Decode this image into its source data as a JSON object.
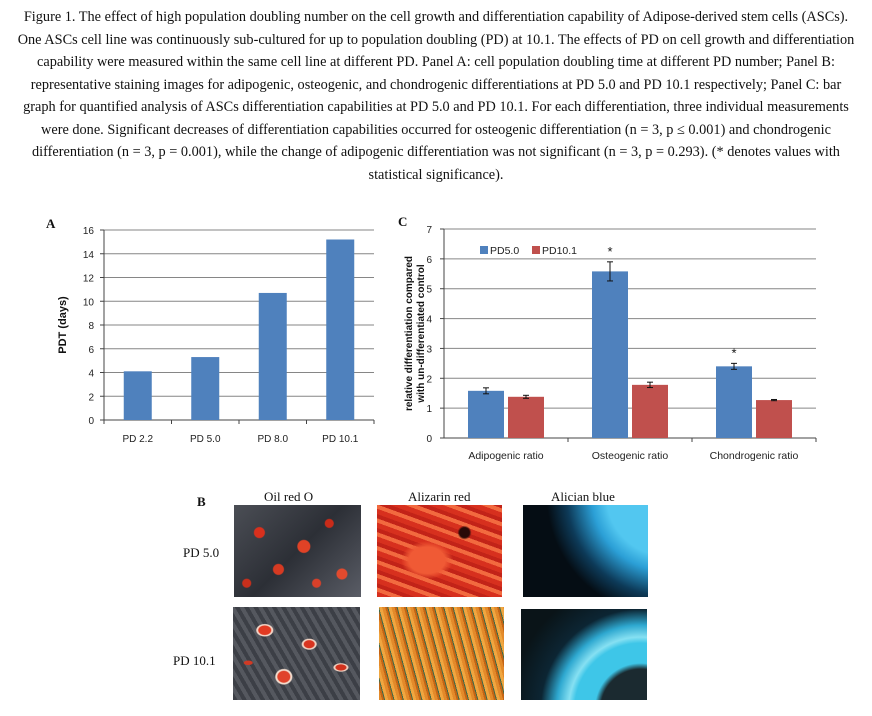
{
  "caption": "Figure 1. The effect of high population doubling number on the cell growth and differentiation capability of Adipose-derived stem cells (ASCs). One ASCs cell line was continuously sub-cultured for up to population doubling (PD) at 10.1. The effects of PD on cell growth and differentiation capability were measured within the same cell line at different PD. Panel A: cell population doubling time at different PD number; Panel B: representative staining images for adipogenic, osteogenic, and chondrogenic differentiations at PD 5.0 and PD 10.1 respectively; Panel C: bar graph for quantified analysis of ASCs differentiation capabilities at PD 5.0 and PD 10.1. For each differentiation, three individual measurements were done. Significant decreases of differentiation capabilities occurred for osteogenic differentiation (n = 3, p ≤ 0.001) and chondrogenic differentiation (n = 3, p = 0.001), while the change of adipogenic differentiation was not significant (n = 3, p = 0.293). (* denotes values with statistical significance).",
  "panels": {
    "a": "A",
    "b": "B",
    "c": "C"
  },
  "panel_b": {
    "columns": [
      "Oil red O",
      "Alizarin red",
      "Alician blue"
    ],
    "rows": [
      "PD 5.0",
      "PD 10.1"
    ]
  },
  "colors": {
    "blue": "#4f81bd",
    "red": "#c0504d",
    "grid": "#868686"
  },
  "chart_data": [
    {
      "type": "bar",
      "panel": "A",
      "categories": [
        "PD 2.2",
        "PD 5.0",
        "PD 8.0",
        "PD 10.1"
      ],
      "values": [
        4.1,
        5.3,
        10.7,
        15.2
      ],
      "ylabel": "PDT (days)",
      "ylim": [
        0,
        16
      ],
      "yticks": [
        0,
        2,
        4,
        6,
        8,
        10,
        12,
        14,
        16
      ],
      "grid": true
    },
    {
      "type": "bar",
      "panel": "C",
      "categories": [
        "Adipogenic ratio",
        "Osteogenic ratio",
        "Chondrogenic ratio"
      ],
      "series": [
        {
          "name": "PD5.0",
          "values": [
            1.58,
            5.58,
            2.4
          ],
          "errors": [
            0.1,
            0.32,
            0.1
          ]
        },
        {
          "name": "PD10.1",
          "values": [
            1.38,
            1.78,
            1.27
          ],
          "errors": [
            0.05,
            0.09,
            0.02
          ]
        }
      ],
      "significance": [
        "",
        "*",
        "*"
      ],
      "ylabel": "relative differentiation compared with un-differentiated control",
      "ylim": [
        0,
        7
      ],
      "yticks": [
        0,
        1,
        2,
        3,
        4,
        5,
        6,
        7
      ],
      "legend": "top-left",
      "grid": true
    }
  ]
}
